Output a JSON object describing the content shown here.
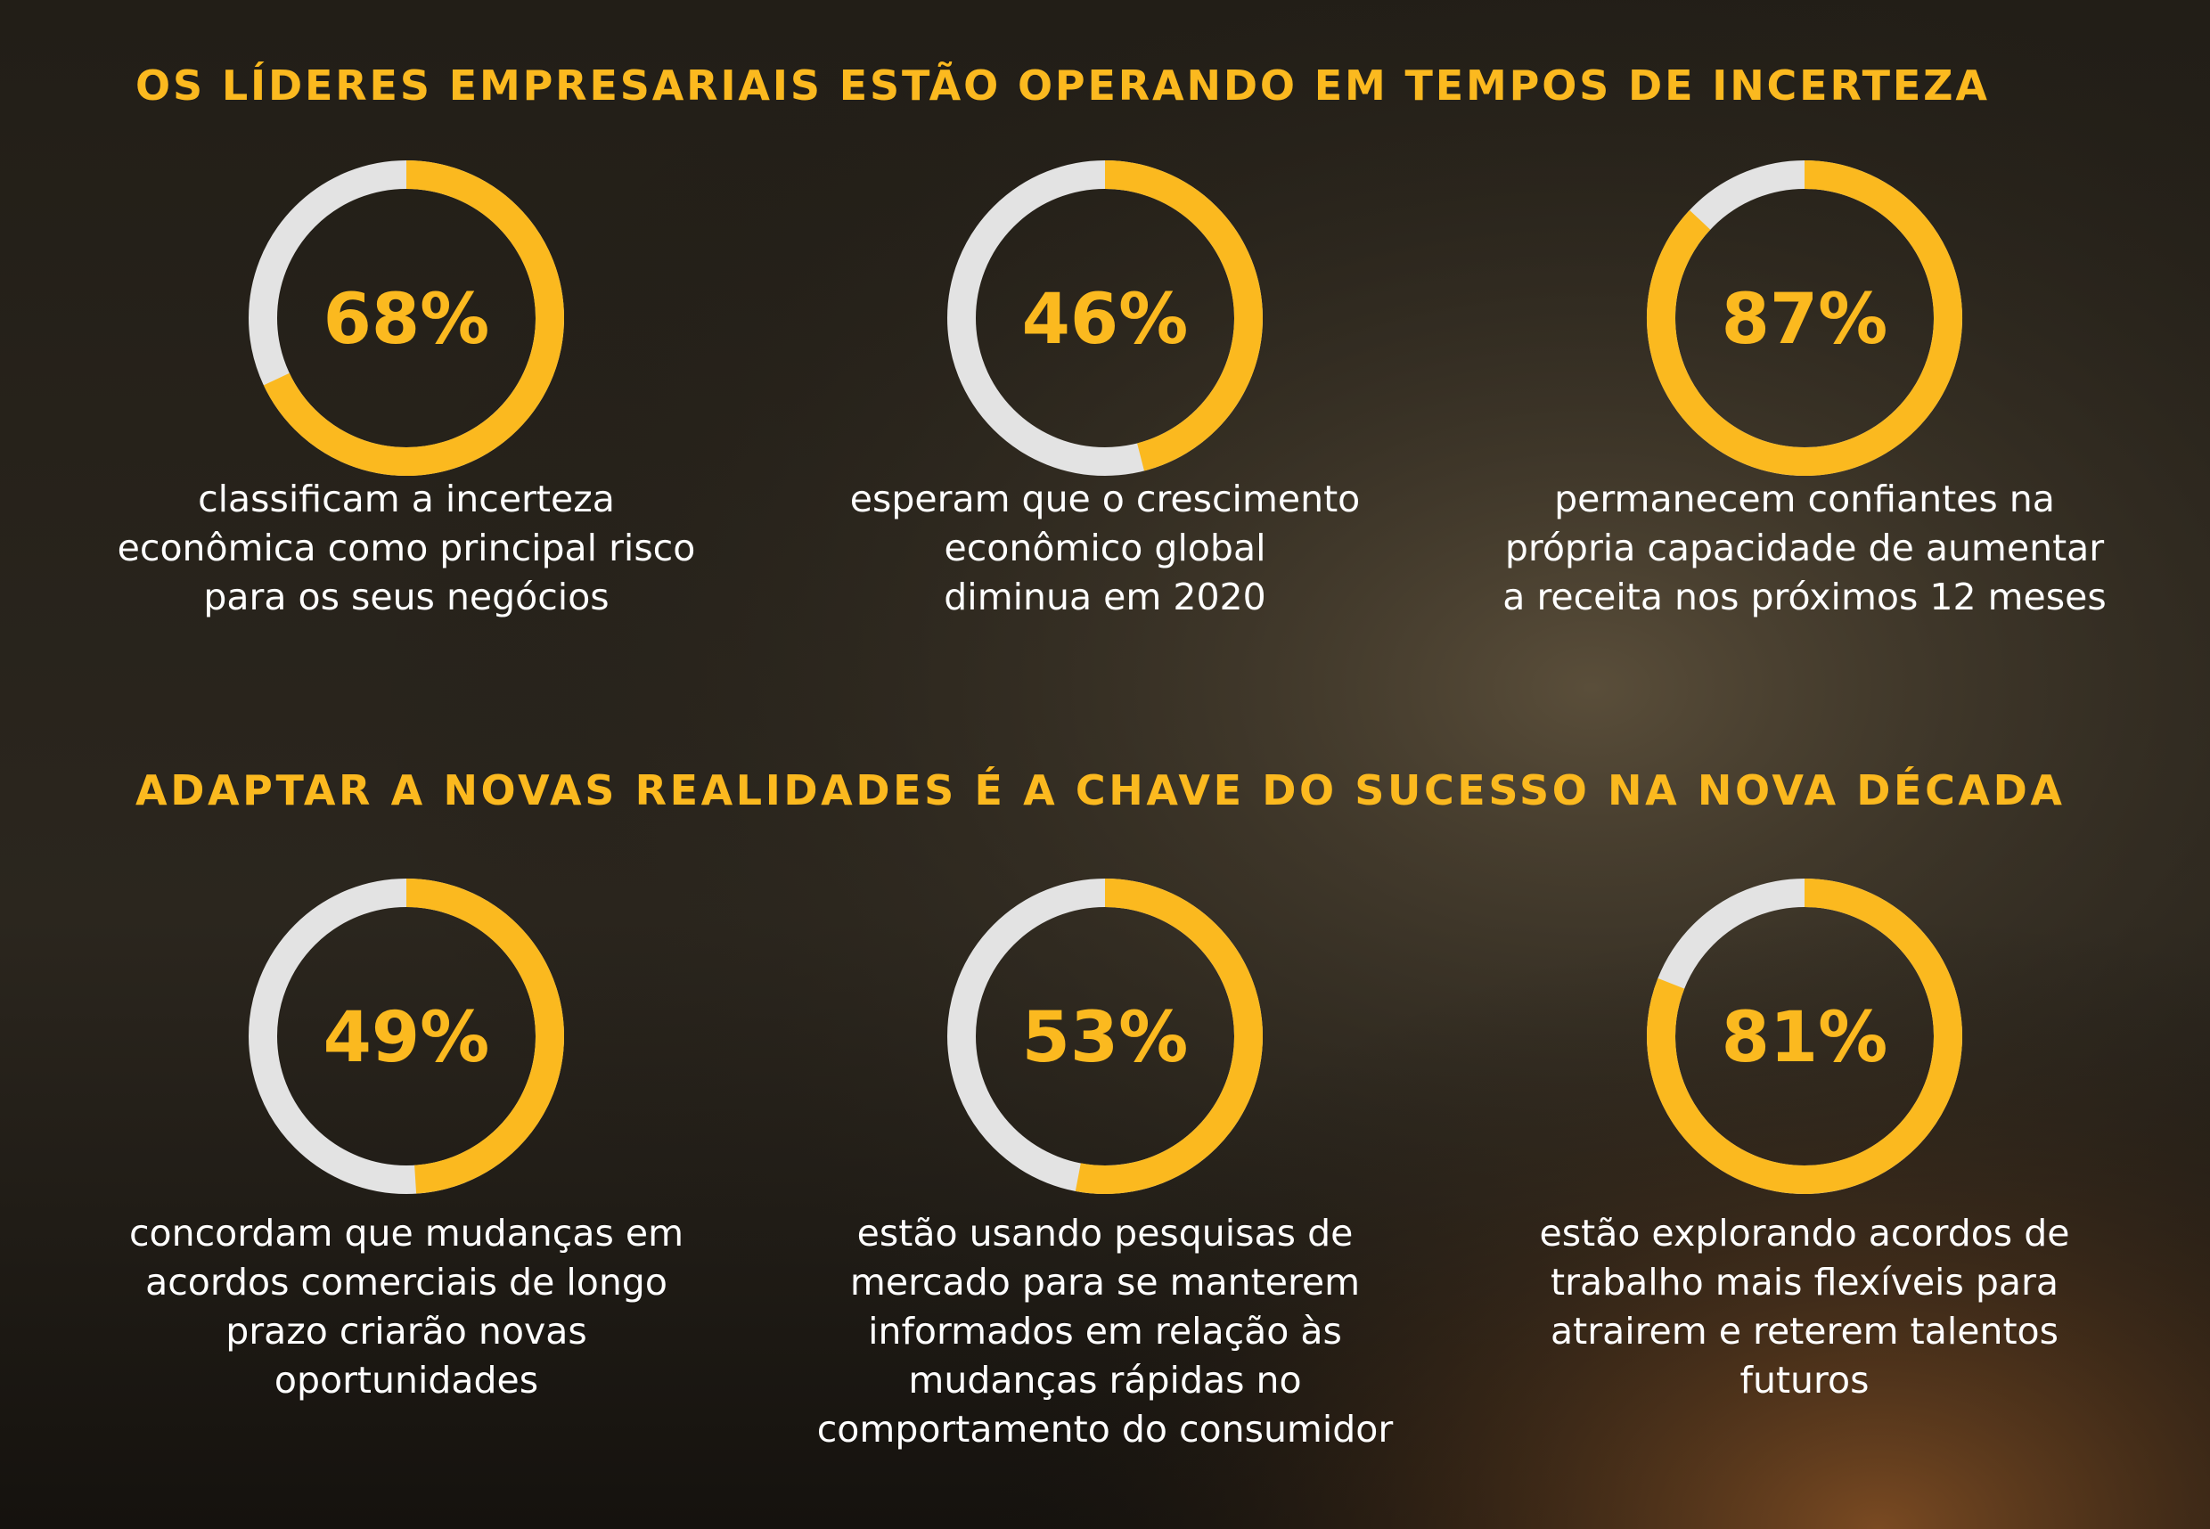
{
  "headings": [
    "OS LÍDERES EMPRESARIAIS ESTÃO OPERANDO EM TEMPOS DE INCERTEZA",
    "ADAPTAR A NOVAS REALIDADES É A CHAVE DO SUCESSO NA NOVA DÉCADA"
  ],
  "chart_data": [
    {
      "type": "donut",
      "values": [
        68
      ],
      "value_labels": [
        "68%"
      ],
      "color": "#fbb91f",
      "track_color": "#e3e3e3",
      "caption": [
        "classificam a incerteza",
        "econômica como principal risco",
        "para os seus negócios"
      ]
    },
    {
      "type": "donut",
      "values": [
        46
      ],
      "value_labels": [
        "46%"
      ],
      "color": "#fbb91f",
      "track_color": "#e3e3e3",
      "caption": [
        "esperam que o crescimento",
        "econômico global",
        "diminua em 2020"
      ]
    },
    {
      "type": "donut",
      "values": [
        87
      ],
      "value_labels": [
        "87%"
      ],
      "color": "#fbb91f",
      "track_color": "#e3e3e3",
      "caption": [
        "permanecem confiantes na",
        "própria capacidade de aumentar",
        "a receita nos próximos 12 meses"
      ]
    },
    {
      "type": "donut",
      "values": [
        49
      ],
      "value_labels": [
        "49%"
      ],
      "color": "#fbb91f",
      "track_color": "#e3e3e3",
      "caption": [
        "concordam que mudanças em",
        "acordos comerciais de longo",
        "prazo criarão novas",
        "oportunidades"
      ]
    },
    {
      "type": "donut",
      "values": [
        53
      ],
      "value_labels": [
        "53%"
      ],
      "color": "#fbb91f",
      "track_color": "#e3e3e3",
      "caption": [
        "estão usando pesquisas de",
        "mercado para se manterem",
        "informados em relação às",
        "mudanças rápidas no",
        "comportamento do consumidor"
      ]
    },
    {
      "type": "donut",
      "values": [
        81
      ],
      "value_labels": [
        "81%"
      ],
      "color": "#fbb91f",
      "track_color": "#e3e3e3",
      "caption": [
        "estão explorando acordos de",
        "trabalho mais flexíveis para",
        "atrairem e reterem talentos",
        "futuros"
      ]
    }
  ]
}
